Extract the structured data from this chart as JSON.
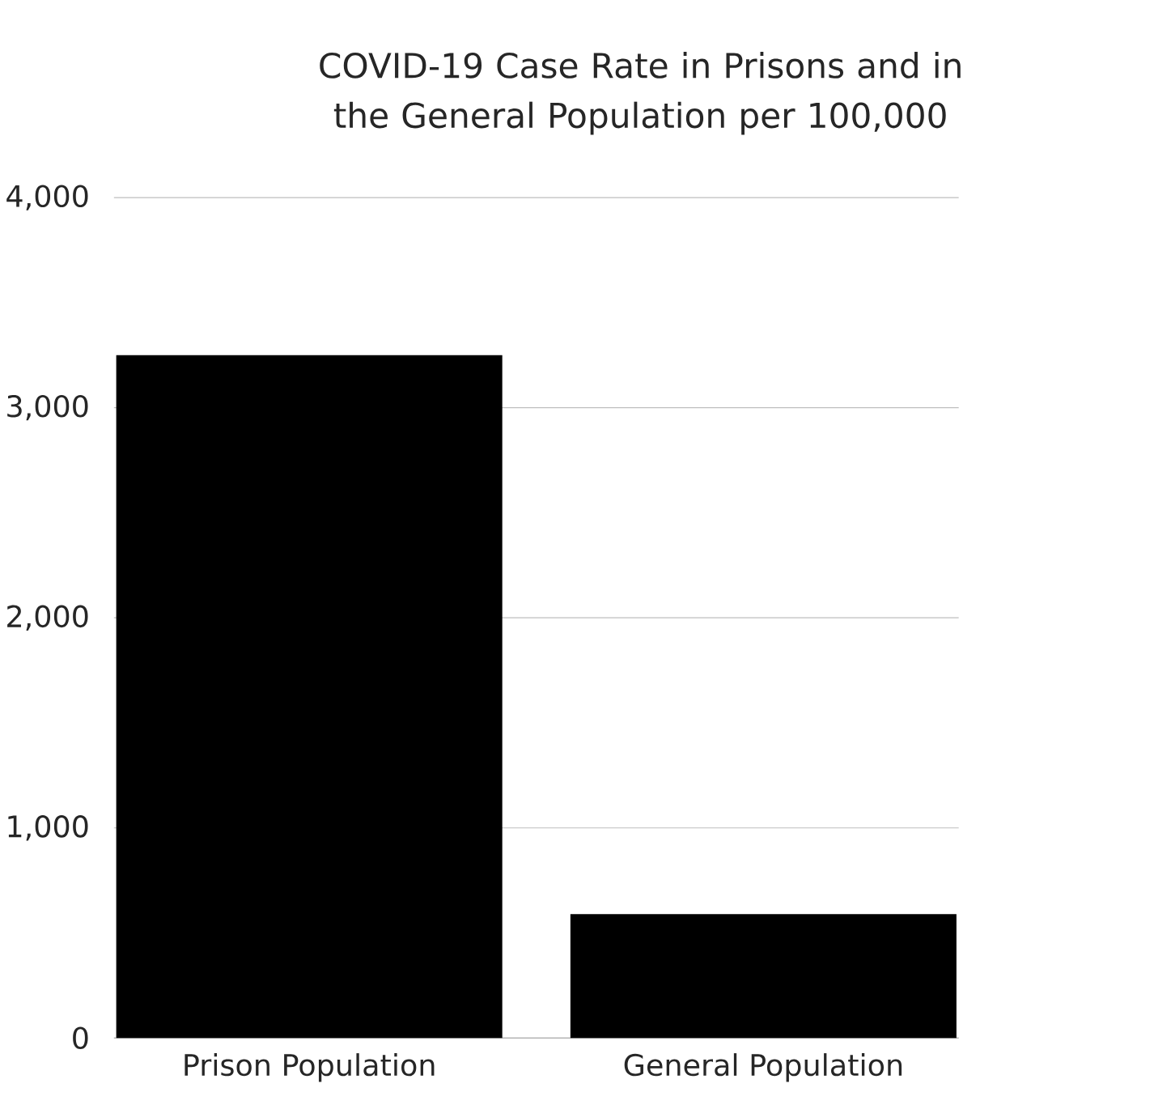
{
  "chart_data": {
    "type": "bar",
    "title": "COVID-19 Case Rate in Prisons and in the General Population per 100,000",
    "categories": [
      "Prison Population",
      "General Population"
    ],
    "values": [
      3250,
      590
    ],
    "color": "#000000",
    "ylim": [
      0,
      4000
    ],
    "yticks": [
      0,
      {
        "value": 1000,
        "label": "1,000"
      },
      {
        "value": 2000,
        "label": "2,000"
      },
      {
        "value": 3000,
        "label": "3,000"
      },
      {
        "value": 4000,
        "label": "4,000"
      }
    ],
    "grid": "y"
  }
}
